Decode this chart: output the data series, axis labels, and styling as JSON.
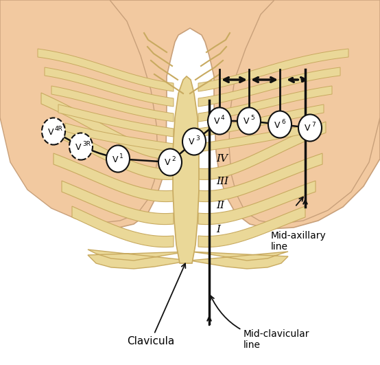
{
  "bg_color": "#ffffff",
  "skin_color": "#F2C9A0",
  "skin_edge": "#C8A07A",
  "bone_color": "#EAD898",
  "bone_edge": "#C8AA60",
  "rib_line": "#A89060",
  "dark": "#111111",
  "text_color": "#000000",
  "annotation_clavicula": "Clavicula",
  "annotation_midclav": "Mid-clavicular\nline",
  "annotation_midax": "Mid-axillary\nline",
  "roman_labels": [
    [
      "I",
      310,
      175
    ],
    [
      "II",
      310,
      215
    ],
    [
      "III",
      310,
      258
    ],
    [
      "IV",
      310,
      300
    ]
  ],
  "figsize": [
    5.54,
    5.31
  ],
  "dpi": 100
}
